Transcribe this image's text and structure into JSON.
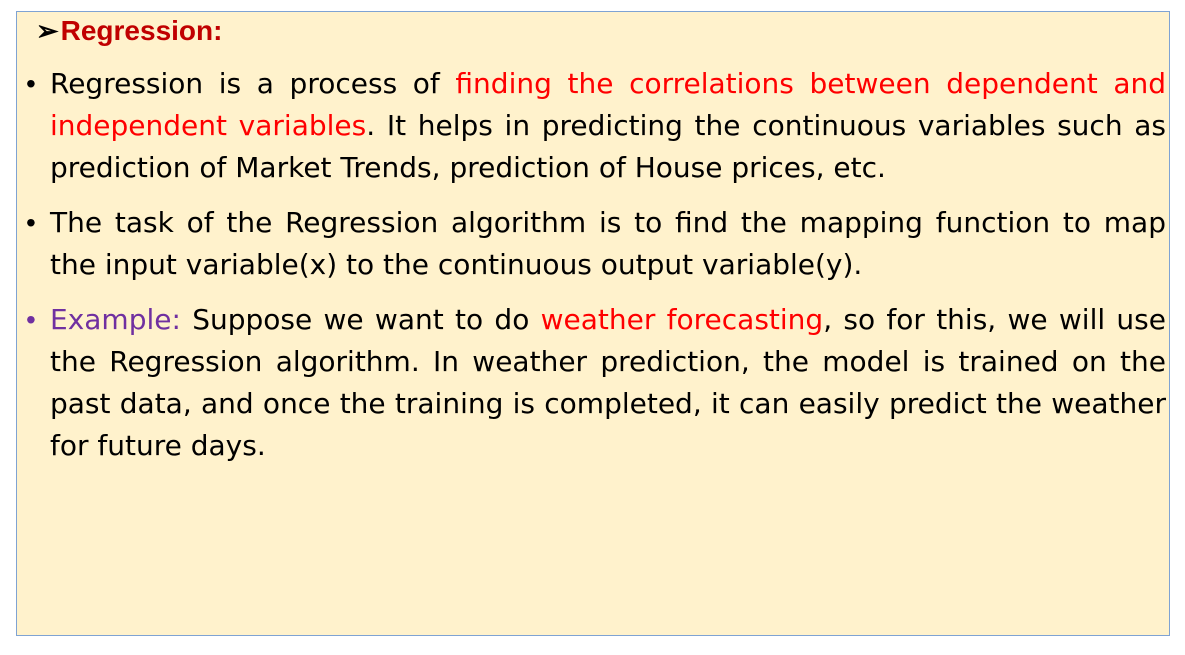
{
  "heading": {
    "arrow": "➢",
    "title": "Regression:"
  },
  "bullets": [
    {
      "marker": "•",
      "parts": {
        "a": "Regression is a process of ",
        "b": "finding the correlations between dependent and independent variables",
        "c": ". It helps in predicting the continuous variables such as prediction of Market Trends, prediction of House prices, etc."
      }
    },
    {
      "marker": "•",
      "parts": {
        "a": "The task of the Regression algorithm is to find the mapping function to map the input variable(x) to the continuous output variable(y)."
      }
    },
    {
      "marker": "•",
      "parts": {
        "a": "Example:",
        "b": " Suppose we want to do ",
        "c": "weather forecasting",
        "d": ", so for this, we will use the Regression algorithm. In weather prediction, the model is trained on the past data, and once the training is completed, it can easily predict the weather for future days."
      }
    }
  ],
  "colors": {
    "panel_bg": "#fff2cc",
    "panel_border": "#7fa3d3",
    "heading": "#c00000",
    "highlight_red": "#ff0000",
    "example_purple": "#7030a0"
  }
}
